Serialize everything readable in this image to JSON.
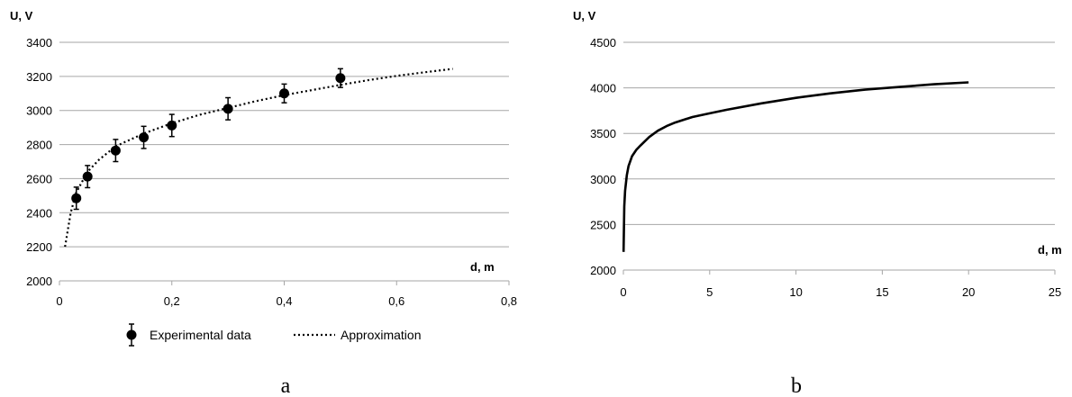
{
  "chart_data": [
    {
      "type": "scatter",
      "ylabel": "U, V",
      "xlabel": "d, m",
      "xlim": [
        0,
        0.8
      ],
      "ylim": [
        2000,
        3400
      ],
      "x_ticks": [
        "0",
        "0,2",
        "0,4",
        "0,6",
        "0,8"
      ],
      "y_ticks": [
        "2000",
        "2200",
        "2400",
        "2600",
        "2800",
        "3000",
        "3200",
        "3400"
      ],
      "grid": "horizontal",
      "legend_position": "bottom",
      "caption": "a",
      "series": [
        {
          "name": "Experimental data",
          "kind": "points-with-error-bars",
          "x": [
            0.03,
            0.05,
            0.1,
            0.15,
            0.2,
            0.3,
            0.4,
            0.5
          ],
          "y": [
            2485,
            2612,
            2765,
            2842,
            2912,
            3010,
            3100,
            3190
          ],
          "error": [
            65,
            65,
            65,
            65,
            65,
            65,
            55,
            55
          ],
          "color": "#000000"
        },
        {
          "name": "Approximation",
          "kind": "dotted-line",
          "x": [
            0.01,
            0.02,
            0.03,
            0.05,
            0.07,
            0.1,
            0.15,
            0.2,
            0.25,
            0.3,
            0.35,
            0.4,
            0.45,
            0.5,
            0.55,
            0.6,
            0.65,
            0.7
          ],
          "y": [
            2200,
            2400,
            2520,
            2640,
            2710,
            2790,
            2865,
            2925,
            2975,
            3015,
            3055,
            3090,
            3120,
            3150,
            3178,
            3203,
            3224,
            3244
          ],
          "color": "#000000"
        }
      ]
    },
    {
      "type": "line",
      "ylabel": "U, V",
      "xlabel": "d, m",
      "xlim": [
        0,
        25
      ],
      "ylim": [
        2000,
        4500
      ],
      "x_ticks": [
        "0",
        "5",
        "10",
        "15",
        "20",
        "25"
      ],
      "y_ticks": [
        "2000",
        "2500",
        "3000",
        "3500",
        "4000",
        "4500"
      ],
      "grid": "horizontal",
      "caption": "b",
      "series": [
        {
          "kind": "solid-line",
          "x": [
            0.01,
            0.05,
            0.1,
            0.2,
            0.3,
            0.5,
            0.75,
            1,
            1.5,
            2,
            2.5,
            3,
            4,
            5,
            6,
            8,
            10,
            12,
            14,
            16,
            18,
            20
          ],
          "y": [
            2200,
            2700,
            2870,
            3040,
            3140,
            3250,
            3320,
            3370,
            3460,
            3530,
            3580,
            3620,
            3680,
            3720,
            3760,
            3830,
            3890,
            3940,
            3980,
            4010,
            4040,
            4060
          ],
          "color": "#000000"
        }
      ]
    }
  ]
}
